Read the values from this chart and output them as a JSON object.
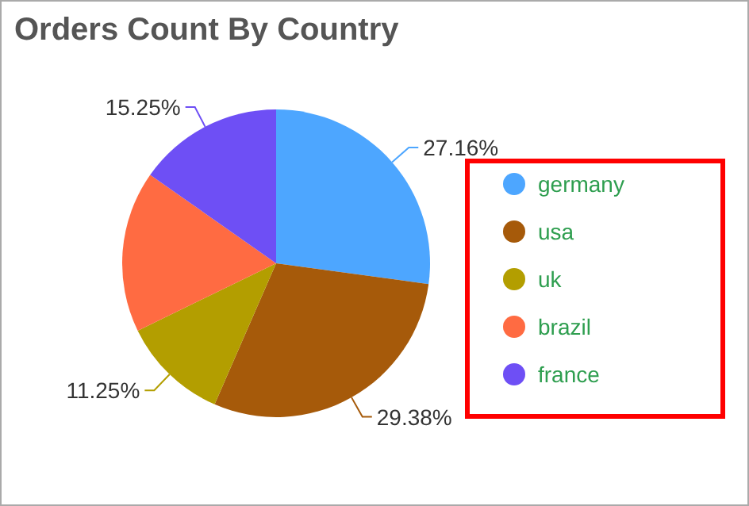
{
  "chart_data": {
    "type": "pie",
    "title": "Orders Count By Country",
    "categories": [
      "germany",
      "usa",
      "uk",
      "brazil",
      "france"
    ],
    "values": [
      27.16,
      29.38,
      11.25,
      16.96,
      15.25
    ],
    "colors": [
      "#4da6ff",
      "#a65a0a",
      "#b39e00",
      "#ff6b42",
      "#6e4ff5"
    ],
    "value_labels": [
      "27.16%",
      "29.38%",
      "11.25%",
      null,
      "15.25%"
    ],
    "legend": "right"
  }
}
